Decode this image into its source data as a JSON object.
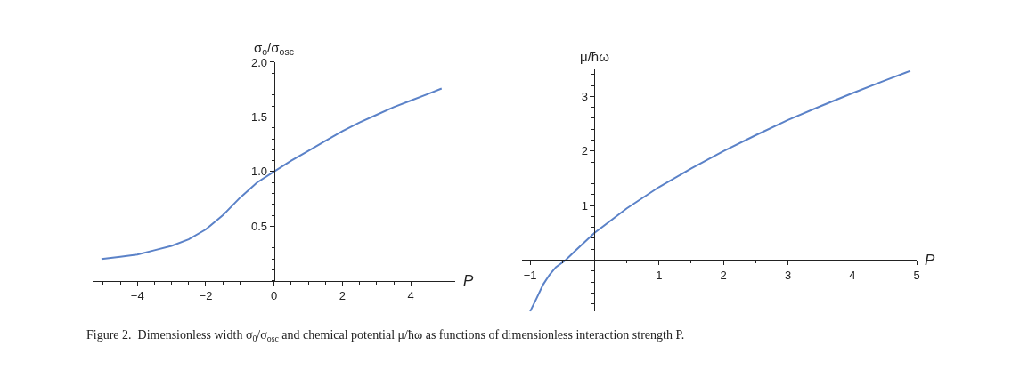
{
  "chart_data": [
    {
      "type": "line",
      "xlabel": "P",
      "ylabel": "σ$_{o}$/σ$_{osc}$",
      "x": [
        -5.05,
        -4.5,
        -4,
        -3.5,
        -3,
        -2.5,
        -2,
        -1.5,
        -1,
        -0.5,
        0,
        0.5,
        1,
        1.5,
        2,
        2.5,
        3,
        3.5,
        4,
        4.5,
        4.9
      ],
      "series": [
        {
          "color": "#5b82c8",
          "values": [
            0.2,
            0.22,
            0.24,
            0.28,
            0.32,
            0.38,
            0.47,
            0.6,
            0.76,
            0.9,
            1.0,
            1.1,
            1.19,
            1.28,
            1.37,
            1.45,
            1.52,
            1.59,
            1.65,
            1.71,
            1.76
          ]
        }
      ],
      "xlim": [
        -5.3,
        5.3
      ],
      "ylim": [
        0,
        2.0
      ],
      "xticks": [
        -4,
        -2,
        0,
        2,
        4
      ],
      "yticks": [
        {
          "value": 0.5,
          "label": "0.5"
        },
        {
          "value": 1,
          "label": "1.0"
        },
        {
          "value": 1.5,
          "label": "1.5"
        },
        {
          "value": 2,
          "label": "2.0"
        }
      ],
      "annotations": [
        "Figure 2.  Dimensionless width σ$_{0}$/σ$_{osc}$ and chemical potential μ/ħω as functions of dimensionless interaction strength P."
      ]
    },
    {
      "type": "line",
      "xlabel": "P",
      "ylabel": "μ/ħω",
      "x": [
        -1.0,
        -0.9,
        -0.8,
        -0.7,
        -0.6,
        -0.45,
        -0.3,
        0,
        0.5,
        1,
        1.5,
        2,
        2.5,
        3,
        3.5,
        4,
        4.5,
        4.9
      ],
      "series": [
        {
          "color": "#5b82c8",
          "values": [
            -0.94,
            -0.7,
            -0.45,
            -0.27,
            -0.13,
            0,
            0.17,
            0.5,
            0.95,
            1.34,
            1.68,
            2.0,
            2.29,
            2.57,
            2.82,
            3.06,
            3.29,
            3.47
          ]
        }
      ],
      "xlim": [
        -1.12,
        5.0
      ],
      "ylim": [
        -0.94,
        3.5
      ],
      "xticks": [
        -1,
        {
          "value": 0,
          "label": null
        },
        1,
        2,
        3,
        4,
        5
      ],
      "yticks": [
        1,
        2,
        3
      ]
    }
  ]
}
